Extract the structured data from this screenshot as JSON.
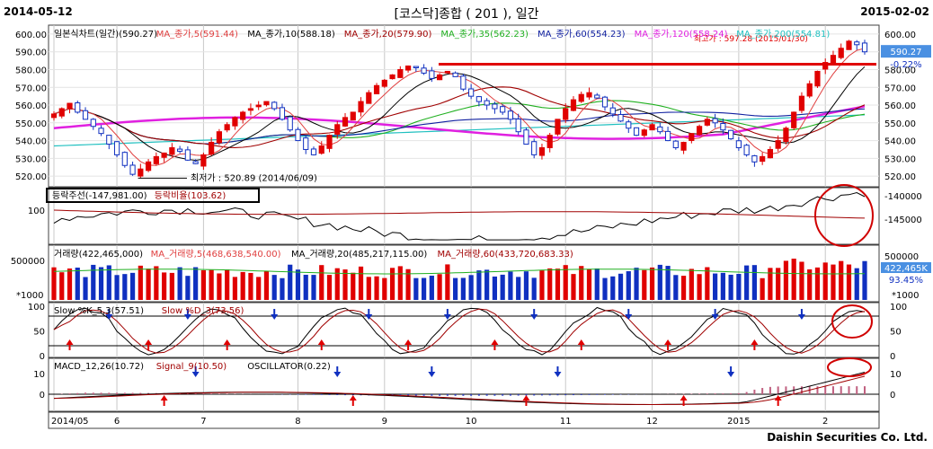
{
  "header": {
    "start_date": "2014-05-12",
    "title": "[코스닥]종합 ( 201 ), 일간",
    "end_date": "2015-02-02"
  },
  "footer": {
    "brand": "Daishin Securities Co. Ltd."
  },
  "colors": {
    "candle_up": "#e00000",
    "candle_down": "#1030c0",
    "ma5": "#e04040",
    "ma10": "#000000",
    "ma20": "#a00000",
    "ma35": "#20b020",
    "ma60": "#1020a0",
    "ma120": "#e020e0",
    "ma200": "#20c0c0",
    "resistance": "#e00000",
    "buy_arrow": "#e00000",
    "sell_arrow": "#1030c0",
    "panel_border": "#404040"
  },
  "price_panel": {
    "legend": [
      {
        "text": "일본식차트(일간)(590.27)",
        "color": "#000000"
      },
      {
        "text": "MA_종가,5(591.44)",
        "color": "#e04040"
      },
      {
        "text": "MA_종가,10(588.18)",
        "color": "#000000"
      },
      {
        "text": "MA_종가,20(579.90)",
        "color": "#a00000"
      },
      {
        "text": "MA_종가,35(562.23)",
        "color": "#20b020"
      },
      {
        "text": "MA_종가,60(554.23)",
        "color": "#1020a0"
      },
      {
        "text": "MA_종가,120(558.24)",
        "color": "#e020e0"
      },
      {
        "text": "MA_종가,200(554.81)",
        "color": "#20c0c0"
      }
    ],
    "y_ticks": [
      "600.00",
      "590.00",
      "580.00",
      "570.00",
      "560.00",
      "550.00",
      "540.00",
      "530.00",
      "520.00"
    ],
    "right_ticks": [
      "600.00",
      "580.00",
      "570.00",
      "560.00",
      "550.00",
      "540.00",
      "530.00",
      "520.00"
    ],
    "last_price_tag": "590.27",
    "change_tag": "-0.22%",
    "high_note": "최고가 : 597.28 (2015/01/30)",
    "low_note": "최저가 : 520.89 (2014/06/09)",
    "resistance_level": 583
  },
  "adl_panel": {
    "legend": [
      {
        "text": "등락주선(-147,981.00)",
        "color": "#000000"
      },
      {
        "text": "등락비율(103.62)",
        "color": "#a00000"
      }
    ],
    "left_tick": "100",
    "right_ticks": [
      "-140000",
      "-145000"
    ]
  },
  "volume_panel": {
    "legend": [
      {
        "text": "거래량(422,465,000)",
        "color": "#000000"
      },
      {
        "text": "MA_거래량,5(468,638,540.00)",
        "color": "#e04040"
      },
      {
        "text": "MA_거래량,20(485,217,115.00)",
        "color": "#000000"
      },
      {
        "text": "MA_거래량,60(433,720,683.33)",
        "color": "#a00000"
      }
    ],
    "left_tick": "500000",
    "unit": "*1000",
    "right_tick": "500000",
    "right_tag": "422,465K",
    "right_pct": "93.45%",
    "right_unit": "*1000"
  },
  "stoch_panel": {
    "legend": [
      {
        "text": "Slow %K_5,3(57.51)",
        "color": "#000000"
      },
      {
        "text": "Slow %D_3(73.56)",
        "color": "#a00000"
      }
    ],
    "left_ticks": [
      "100",
      "50",
      "0"
    ],
    "right_ticks": [
      "100",
      "50",
      "0"
    ]
  },
  "macd_panel": {
    "legend": [
      {
        "text": "MACD_12,26(10.72)",
        "color": "#000000"
      },
      {
        "text": "Signal_9(10.50)",
        "color": "#a00000"
      },
      {
        "text": "OSCILLATOR(0.22)",
        "color": "#000000"
      }
    ],
    "left_ticks": [
      "10",
      "0"
    ],
    "right_ticks": [
      "10",
      "0"
    ]
  },
  "x_axis": {
    "labels": [
      "2014/05",
      "6",
      "7",
      "8",
      "9",
      "10",
      "11",
      "12",
      "2015",
      "2"
    ]
  },
  "chart_data": {
    "type": "candlestick",
    "price_closes_approx": [
      555,
      558,
      561,
      556,
      552,
      548,
      544,
      538,
      532,
      526,
      521,
      524,
      528,
      531,
      533,
      536,
      534,
      529,
      527,
      532,
      539,
      545,
      549,
      553,
      556,
      558,
      560,
      562,
      558,
      552,
      546,
      540,
      535,
      532,
      537,
      543,
      549,
      553,
      556,
      562,
      567,
      571,
      574,
      577,
      580,
      582,
      581,
      578,
      575,
      577,
      579,
      576,
      569,
      565,
      562,
      560,
      558,
      556,
      552,
      545,
      538,
      532,
      536,
      543,
      552,
      558,
      563,
      566,
      567,
      564,
      559,
      555,
      551,
      547,
      543,
      546,
      549,
      545,
      540,
      536,
      539,
      544,
      548,
      552,
      550,
      546,
      541,
      536,
      532,
      528,
      531,
      535,
      540,
      547,
      556,
      565,
      572,
      579,
      584,
      588,
      592,
      596,
      594,
      590
    ],
    "series": [
      {
        "name": "MA_종가,5",
        "last": 591.44
      },
      {
        "name": "MA_종가,10",
        "last": 588.18
      },
      {
        "name": "MA_종가,20",
        "last": 579.9
      },
      {
        "name": "MA_종가,35",
        "last": 562.23
      },
      {
        "name": "MA_종가,60",
        "last": 554.23
      },
      {
        "name": "MA_종가,120",
        "last": 558.24
      },
      {
        "name": "MA_종가,200",
        "last": 554.81
      }
    ],
    "ylim": [
      515,
      603
    ],
    "last_close": 590.27,
    "high": 597.28,
    "low": 520.89,
    "adl_last": -147981.0,
    "adr_last": 103.62,
    "volume_last": 422465000,
    "stoch_k_last": 57.51,
    "stoch_d_last": 73.56,
    "macd_last": 10.72,
    "signal_last": 10.5,
    "oscillator_last": 0.22
  }
}
